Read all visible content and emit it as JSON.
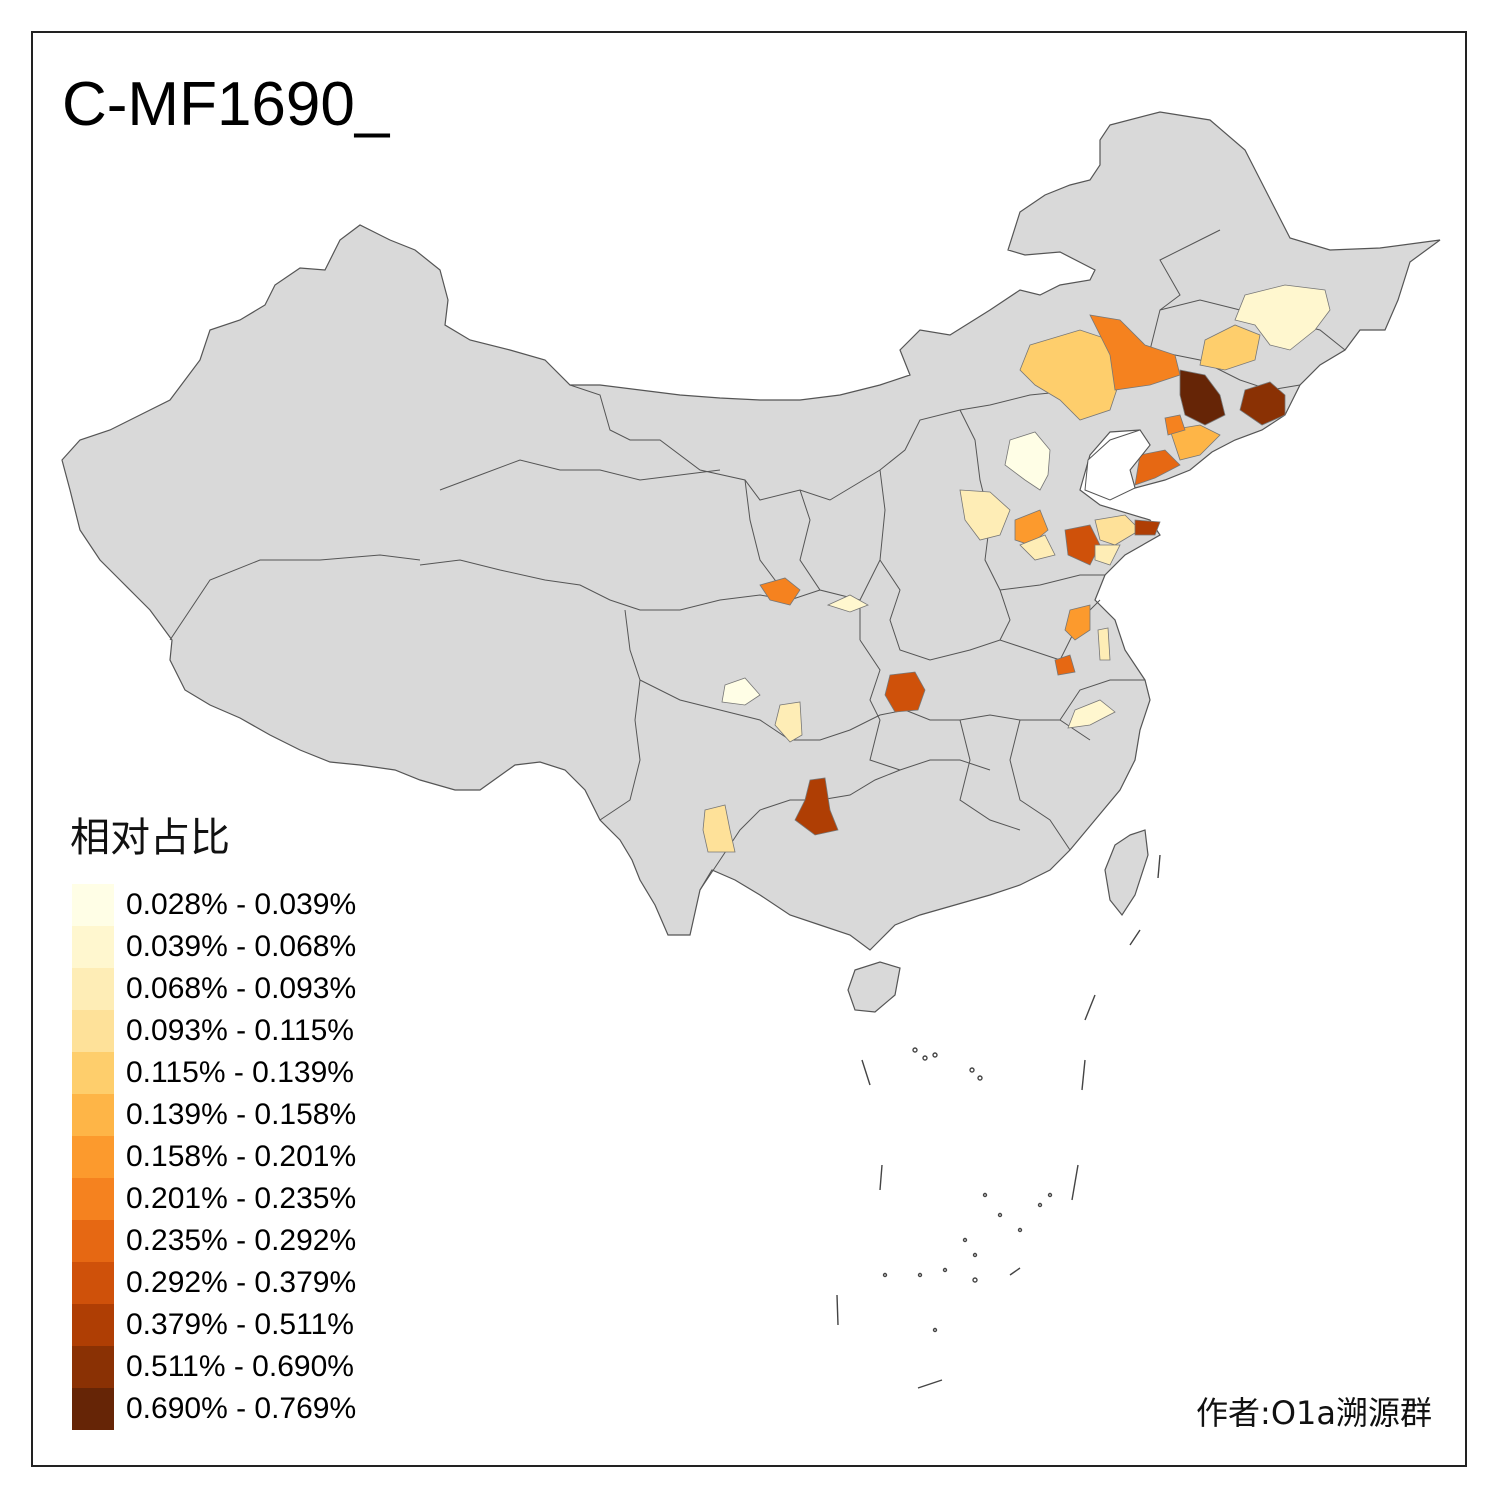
{
  "title": "C-MF1690_",
  "legend": {
    "title": "相对占比",
    "items": [
      {
        "label": "0.028% - 0.039%",
        "color": "#FFFEE6"
      },
      {
        "label": "0.039% - 0.068%",
        "color": "#FFF7CF"
      },
      {
        "label": "0.068% - 0.093%",
        "color": "#FEEDB6"
      },
      {
        "label": "0.093% - 0.115%",
        "color": "#FEE199"
      },
      {
        "label": "0.115% - 0.139%",
        "color": "#FECE6C"
      },
      {
        "label": "0.139% - 0.158%",
        "color": "#FEB547"
      },
      {
        "label": "0.158% - 0.201%",
        "color": "#FC9A2D"
      },
      {
        "label": "0.201% - 0.235%",
        "color": "#F5821F"
      },
      {
        "label": "0.235% - 0.292%",
        "color": "#E66813"
      },
      {
        "label": "0.292% - 0.379%",
        "color": "#CF510A"
      },
      {
        "label": "0.379% - 0.511%",
        "color": "#AF3E04"
      },
      {
        "label": "0.511% - 0.690%",
        "color": "#8A3104"
      },
      {
        "label": "0.690% - 0.769%",
        "color": "#662506"
      }
    ]
  },
  "author": "作者:O1a溯源群",
  "colors": {
    "land": "#D9D9D9",
    "border": "#555555",
    "frame": "#222222"
  }
}
